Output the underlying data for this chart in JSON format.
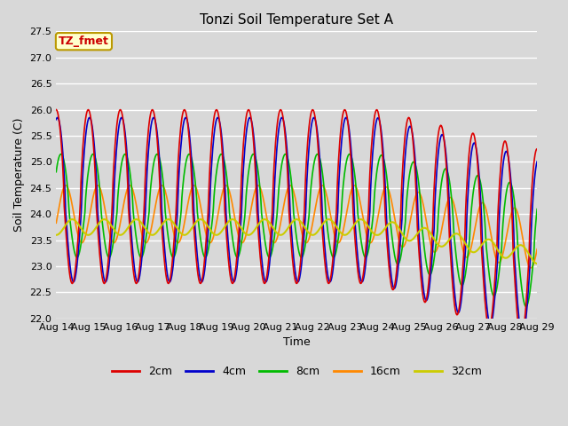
{
  "title": "Tonzi Soil Temperature Set A",
  "xlabel": "Time",
  "ylabel": "Soil Temperature (C)",
  "annotation_text": "TZ_fmet",
  "annotation_color": "#cc0000",
  "annotation_bg": "#ffffcc",
  "annotation_border": "#bb9900",
  "ylim": [
    22.0,
    27.5
  ],
  "background_color": "#d8d8d8",
  "plot_bg_color": "#d8d8d8",
  "grid_color": "#ffffff",
  "series": {
    "2cm": {
      "color": "#dd0000",
      "lw": 1.2
    },
    "4cm": {
      "color": "#0000cc",
      "lw": 1.2
    },
    "8cm": {
      "color": "#00bb00",
      "lw": 1.2
    },
    "16cm": {
      "color": "#ff8800",
      "lw": 1.2
    },
    "32cm": {
      "color": "#cccc00",
      "lw": 1.5
    }
  },
  "xtick_labels": [
    "Aug 14",
    "Aug 15",
    "Aug 16",
    "Aug 17",
    "Aug 18",
    "Aug 19",
    "Aug 20",
    "Aug 21",
    "Aug 22",
    "Aug 23",
    "Aug 24",
    "Aug 25",
    "Aug 26",
    "Aug 27",
    "Aug 28",
    "Aug 29"
  ],
  "ytick_vals": [
    22.0,
    22.5,
    23.0,
    23.5,
    24.0,
    24.5,
    25.0,
    25.5,
    26.0,
    26.5,
    27.0,
    27.5
  ]
}
